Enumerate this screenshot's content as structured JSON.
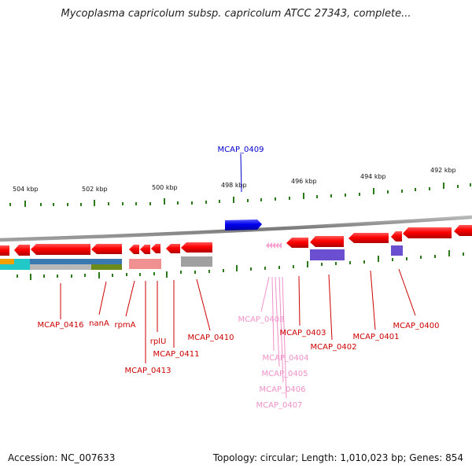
{
  "title": "Mycoplasma capricolum subsp. capricolum ATCC 27343, complete...",
  "footer": {
    "accession": "Accession: NC_007633",
    "summary": "Topology: circular; Length: 1,010,023 bp; Genes: 854"
  },
  "colors": {
    "backbone": "#8a8a8a",
    "forward_gene": "#1010e0",
    "reverse_gene": "#f00000",
    "tick": "#2a7a1a",
    "label_red": "#cc0000",
    "label_blue": "#0000cc",
    "label_pink": "#f090c8"
  },
  "kbp_ticks": [
    "504 kbp",
    "502 kbp",
    "500 kbp",
    "498 kbp",
    "496 kbp",
    "494 kbp",
    "492 kbp"
  ],
  "gene_labels": [
    {
      "name": "MCAP_0409",
      "color": "blue"
    },
    {
      "name": "MCAP_0416",
      "color": "red"
    },
    {
      "name": "nanA",
      "color": "red"
    },
    {
      "name": "rpmA",
      "color": "red"
    },
    {
      "name": "rplU",
      "color": "red"
    },
    {
      "name": "MCAP_0413",
      "color": "red"
    },
    {
      "name": "MCAP_0411",
      "color": "red"
    },
    {
      "name": "MCAP_0410",
      "color": "red"
    },
    {
      "name": "MCAP_0408",
      "color": "pink"
    },
    {
      "name": "MCAP_0404",
      "color": "pink"
    },
    {
      "name": "MCAP_0405",
      "color": "pink"
    },
    {
      "name": "MCAP_0406",
      "color": "pink"
    },
    {
      "name": "MCAP_0407",
      "color": "pink"
    },
    {
      "name": "MCAP_0403",
      "color": "red"
    },
    {
      "name": "MCAP_0402",
      "color": "red"
    },
    {
      "name": "MCAP_0401",
      "color": "red"
    },
    {
      "name": "MCAP_0400",
      "color": "red"
    }
  ]
}
